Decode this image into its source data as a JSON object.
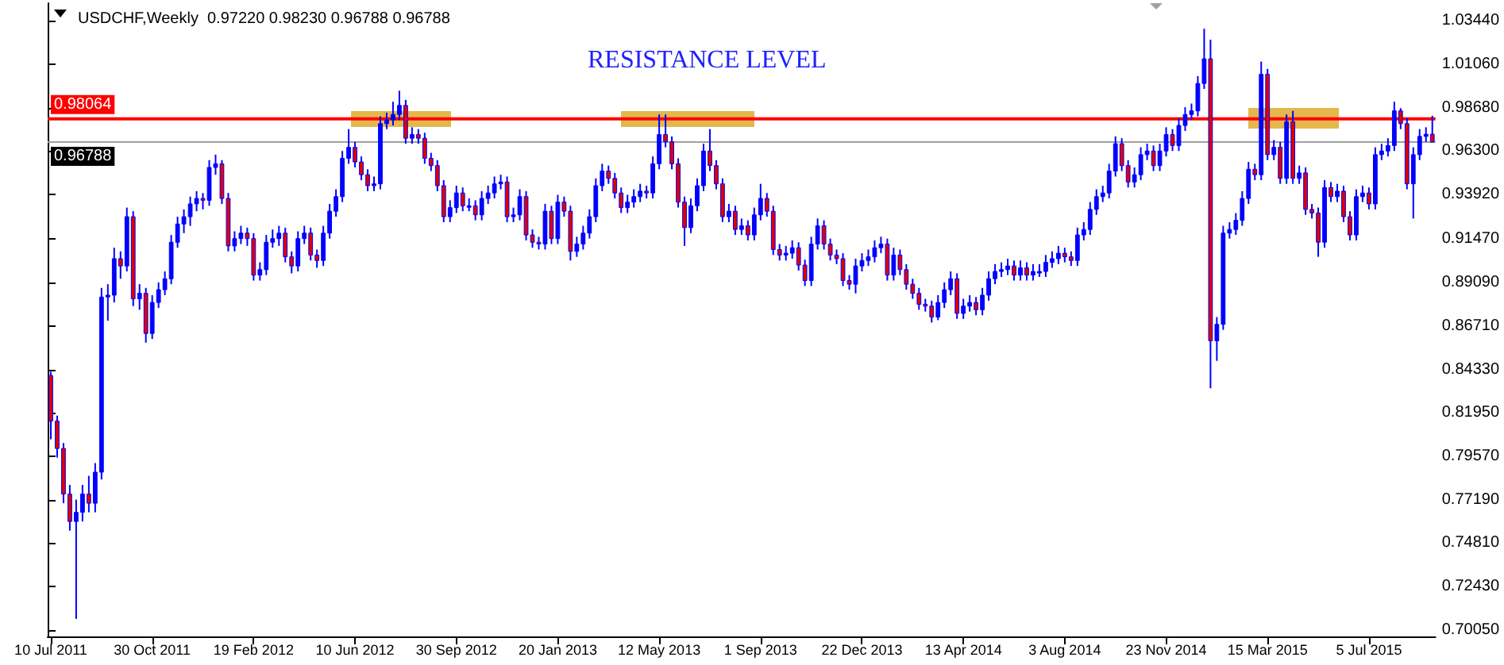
{
  "chart_data": {
    "type": "candlestick",
    "title": "USDCHF,Weekly  0.97220 0.98230 0.96788 0.96788",
    "annotations": [
      "RESISTANCE LEVEL"
    ],
    "color": "#0000ff",
    "categories": [
      "10 Jul 2011",
      null,
      null,
      null,
      null,
      null,
      null,
      null,
      null,
      null,
      null,
      null,
      null,
      null,
      null,
      null,
      "30 Oct 2011",
      null,
      null,
      null,
      null,
      null,
      null,
      null,
      null,
      null,
      null,
      null,
      null,
      null,
      null,
      null,
      "19 Feb 2012",
      null,
      null,
      null,
      null,
      null,
      null,
      null,
      null,
      null,
      null,
      null,
      null,
      null,
      null,
      null,
      "10 Jun 2012",
      null,
      null,
      null,
      null,
      null,
      null,
      null,
      null,
      null,
      null,
      null,
      null,
      null,
      null,
      null,
      "30 Sep 2012",
      null,
      null,
      null,
      null,
      null,
      null,
      null,
      null,
      null,
      null,
      null,
      null,
      null,
      null,
      null,
      "20 Jan 2013",
      null,
      null,
      null,
      null,
      null,
      null,
      null,
      null,
      null,
      null,
      null,
      null,
      null,
      null,
      null,
      "12 May 2013",
      null,
      null,
      null,
      null,
      null,
      null,
      null,
      null,
      null,
      null,
      null,
      null,
      null,
      null,
      null,
      "1 Sep 2013",
      null,
      null,
      null,
      null,
      null,
      null,
      null,
      null,
      null,
      null,
      null,
      null,
      null,
      null,
      null,
      "22 Dec 2013",
      null,
      null,
      null,
      null,
      null,
      null,
      null,
      null,
      null,
      null,
      null,
      null,
      null,
      null,
      null,
      "13 Apr 2014",
      null,
      null,
      null,
      null,
      null,
      null,
      null,
      null,
      null,
      null,
      null,
      null,
      null,
      null,
      null,
      "3 Aug 2014",
      null,
      null,
      null,
      null,
      null,
      null,
      null,
      null,
      null,
      null,
      null,
      null,
      null,
      null,
      null,
      "23 Nov 2014",
      null,
      null,
      null,
      null,
      null,
      null,
      null,
      null,
      null,
      null,
      null,
      null,
      null,
      null,
      null,
      "15 Mar 2015",
      null,
      null,
      null,
      null,
      null,
      null,
      null,
      null,
      null,
      null,
      null,
      null,
      null,
      null,
      null,
      "5 Jul 2015",
      null,
      null,
      null,
      null,
      null,
      null,
      null,
      null,
      null,
      null
    ],
    "ohlc": [
      [
        0.84,
        0.842,
        0.805,
        0.815
      ],
      [
        0.815,
        0.818,
        0.795,
        0.8
      ],
      [
        0.8,
        0.803,
        0.77,
        0.775
      ],
      [
        0.775,
        0.78,
        0.755,
        0.76
      ],
      [
        0.76,
        0.772,
        0.7066,
        0.765
      ],
      [
        0.765,
        0.78,
        0.76,
        0.775
      ],
      [
        0.775,
        0.785,
        0.765,
        0.77
      ],
      [
        0.77,
        0.792,
        0.765,
        0.787
      ],
      [
        0.787,
        0.888,
        0.783,
        0.883
      ],
      [
        0.883,
        0.89,
        0.87,
        0.884
      ],
      [
        0.884,
        0.91,
        0.88,
        0.904
      ],
      [
        0.904,
        0.908,
        0.893,
        0.9
      ],
      [
        0.9,
        0.932,
        0.897,
        0.927
      ],
      [
        0.927,
        0.93,
        0.878,
        0.882
      ],
      [
        0.882,
        0.89,
        0.876,
        0.885
      ],
      [
        0.885,
        0.888,
        0.858,
        0.863
      ],
      [
        0.863,
        0.884,
        0.86,
        0.88
      ],
      [
        0.88,
        0.891,
        0.877,
        0.887
      ],
      [
        0.887,
        0.897,
        0.884,
        0.893
      ],
      [
        0.893,
        0.917,
        0.89,
        0.913
      ],
      [
        0.913,
        0.927,
        0.91,
        0.923
      ],
      [
        0.923,
        0.931,
        0.918,
        0.927
      ],
      [
        0.927,
        0.938,
        0.922,
        0.934
      ],
      [
        0.934,
        0.941,
        0.93,
        0.937
      ],
      [
        0.937,
        0.94,
        0.931,
        0.936
      ],
      [
        0.936,
        0.958,
        0.933,
        0.954
      ],
      [
        0.954,
        0.961,
        0.95,
        0.956
      ],
      [
        0.956,
        0.958,
        0.934,
        0.937
      ],
      [
        0.937,
        0.94,
        0.908,
        0.911
      ],
      [
        0.911,
        0.919,
        0.908,
        0.915
      ],
      [
        0.915,
        0.922,
        0.912,
        0.918
      ],
      [
        0.918,
        0.921,
        0.911,
        0.915
      ],
      [
        0.915,
        0.918,
        0.892,
        0.895
      ],
      [
        0.895,
        0.902,
        0.892,
        0.898
      ],
      [
        0.898,
        0.917,
        0.895,
        0.913
      ],
      [
        0.913,
        0.92,
        0.91,
        0.915
      ],
      [
        0.915,
        0.922,
        0.911,
        0.918
      ],
      [
        0.918,
        0.921,
        0.902,
        0.905
      ],
      [
        0.905,
        0.908,
        0.896,
        0.9
      ],
      [
        0.9,
        0.919,
        0.897,
        0.915
      ],
      [
        0.915,
        0.922,
        0.912,
        0.918
      ],
      [
        0.918,
        0.921,
        0.903,
        0.906
      ],
      [
        0.906,
        0.909,
        0.899,
        0.903
      ],
      [
        0.903,
        0.922,
        0.9,
        0.918
      ],
      [
        0.918,
        0.934,
        0.915,
        0.93
      ],
      [
        0.93,
        0.942,
        0.927,
        0.938
      ],
      [
        0.938,
        0.963,
        0.935,
        0.959
      ],
      [
        0.959,
        0.975,
        0.956,
        0.965
      ],
      [
        0.965,
        0.968,
        0.954,
        0.957
      ],
      [
        0.957,
        0.96,
        0.947,
        0.95
      ],
      [
        0.95,
        0.953,
        0.941,
        0.944
      ],
      [
        0.944,
        0.949,
        0.941,
        0.945
      ],
      [
        0.945,
        0.982,
        0.942,
        0.978
      ],
      [
        0.978,
        0.984,
        0.975,
        0.98
      ],
      [
        0.98,
        0.99,
        0.977,
        0.983
      ],
      [
        0.983,
        0.996,
        0.98,
        0.988
      ],
      [
        0.988,
        0.991,
        0.967,
        0.97
      ],
      [
        0.97,
        0.976,
        0.967,
        0.972
      ],
      [
        0.972,
        0.975,
        0.967,
        0.97
      ],
      [
        0.97,
        0.973,
        0.956,
        0.959
      ],
      [
        0.959,
        0.962,
        0.952,
        0.955
      ],
      [
        0.955,
        0.958,
        0.941,
        0.944
      ],
      [
        0.944,
        0.947,
        0.924,
        0.927
      ],
      [
        0.927,
        0.936,
        0.924,
        0.932
      ],
      [
        0.932,
        0.944,
        0.929,
        0.94
      ],
      [
        0.94,
        0.943,
        0.93,
        0.933
      ],
      [
        0.933,
        0.937,
        0.93,
        0.933
      ],
      [
        0.933,
        0.936,
        0.925,
        0.928
      ],
      [
        0.928,
        0.941,
        0.925,
        0.937
      ],
      [
        0.937,
        0.944,
        0.934,
        0.94
      ],
      [
        0.94,
        0.949,
        0.937,
        0.945
      ],
      [
        0.945,
        0.95,
        0.942,
        0.946
      ],
      [
        0.946,
        0.949,
        0.924,
        0.927
      ],
      [
        0.927,
        0.932,
        0.924,
        0.928
      ],
      [
        0.928,
        0.942,
        0.925,
        0.938
      ],
      [
        0.938,
        0.941,
        0.914,
        0.917
      ],
      [
        0.917,
        0.92,
        0.91,
        0.913
      ],
      [
        0.913,
        0.916,
        0.909,
        0.912
      ],
      [
        0.912,
        0.934,
        0.909,
        0.93
      ],
      [
        0.93,
        0.933,
        0.912,
        0.915
      ],
      [
        0.915,
        0.939,
        0.912,
        0.935
      ],
      [
        0.935,
        0.938,
        0.927,
        0.93
      ],
      [
        0.93,
        0.933,
        0.903,
        0.908
      ],
      [
        0.908,
        0.916,
        0.905,
        0.912
      ],
      [
        0.912,
        0.922,
        0.909,
        0.918
      ],
      [
        0.918,
        0.931,
        0.915,
        0.927
      ],
      [
        0.927,
        0.948,
        0.924,
        0.944
      ],
      [
        0.944,
        0.956,
        0.941,
        0.952
      ],
      [
        0.952,
        0.955,
        0.945,
        0.948
      ],
      [
        0.948,
        0.951,
        0.937,
        0.94
      ],
      [
        0.94,
        0.943,
        0.929,
        0.932
      ],
      [
        0.932,
        0.939,
        0.929,
        0.935
      ],
      [
        0.935,
        0.942,
        0.932,
        0.938
      ],
      [
        0.938,
        0.945,
        0.935,
        0.941
      ],
      [
        0.941,
        0.944,
        0.937,
        0.94
      ],
      [
        0.94,
        0.96,
        0.937,
        0.956
      ],
      [
        0.956,
        0.983,
        0.953,
        0.972
      ],
      [
        0.972,
        0.983,
        0.965,
        0.968
      ],
      [
        0.968,
        0.971,
        0.953,
        0.956
      ],
      [
        0.956,
        0.959,
        0.932,
        0.935
      ],
      [
        0.935,
        0.938,
        0.911,
        0.921
      ],
      [
        0.921,
        0.937,
        0.918,
        0.933
      ],
      [
        0.933,
        0.948,
        0.93,
        0.944
      ],
      [
        0.944,
        0.967,
        0.941,
        0.963
      ],
      [
        0.963,
        0.975,
        0.952,
        0.955
      ],
      [
        0.955,
        0.958,
        0.942,
        0.945
      ],
      [
        0.945,
        0.948,
        0.924,
        0.927
      ],
      [
        0.927,
        0.934,
        0.924,
        0.93
      ],
      [
        0.93,
        0.933,
        0.917,
        0.92
      ],
      [
        0.92,
        0.926,
        0.917,
        0.922
      ],
      [
        0.922,
        0.925,
        0.914,
        0.917
      ],
      [
        0.917,
        0.932,
        0.914,
        0.928
      ],
      [
        0.928,
        0.945,
        0.925,
        0.937
      ],
      [
        0.937,
        0.94,
        0.927,
        0.93
      ],
      [
        0.93,
        0.933,
        0.906,
        0.909
      ],
      [
        0.909,
        0.912,
        0.903,
        0.906
      ],
      [
        0.906,
        0.911,
        0.903,
        0.907
      ],
      [
        0.907,
        0.914,
        0.904,
        0.91
      ],
      [
        0.91,
        0.913,
        0.8975,
        0.9005
      ],
      [
        0.9005,
        0.9035,
        0.889,
        0.892
      ],
      [
        0.892,
        0.916,
        0.889,
        0.912
      ],
      [
        0.912,
        0.926,
        0.909,
        0.922
      ],
      [
        0.922,
        0.925,
        0.909,
        0.912
      ],
      [
        0.912,
        0.915,
        0.903,
        0.906
      ],
      [
        0.906,
        0.909,
        0.901,
        0.904
      ],
      [
        0.904,
        0.907,
        0.889,
        0.892
      ],
      [
        0.892,
        0.895,
        0.887,
        0.89
      ],
      [
        0.89,
        0.904,
        0.885,
        0.9
      ],
      [
        0.9,
        0.907,
        0.897,
        0.903
      ],
      [
        0.903,
        0.909,
        0.9,
        0.905
      ],
      [
        0.905,
        0.914,
        0.902,
        0.91
      ],
      [
        0.91,
        0.916,
        0.907,
        0.912
      ],
      [
        0.912,
        0.915,
        0.892,
        0.895
      ],
      [
        0.895,
        0.91,
        0.892,
        0.906
      ],
      [
        0.906,
        0.909,
        0.895,
        0.898
      ],
      [
        0.898,
        0.901,
        0.887,
        0.89
      ],
      [
        0.89,
        0.893,
        0.882,
        0.885
      ],
      [
        0.885,
        0.888,
        0.876,
        0.879
      ],
      [
        0.879,
        0.882,
        0.875,
        0.878
      ],
      [
        0.878,
        0.881,
        0.869,
        0.872
      ],
      [
        0.872,
        0.884,
        0.8703,
        0.88
      ],
      [
        0.88,
        0.891,
        0.877,
        0.887
      ],
      [
        0.887,
        0.897,
        0.884,
        0.893
      ],
      [
        0.893,
        0.896,
        0.871,
        0.874
      ],
      [
        0.874,
        0.882,
        0.871,
        0.878
      ],
      [
        0.878,
        0.884,
        0.875,
        0.88
      ],
      [
        0.88,
        0.883,
        0.873,
        0.876
      ],
      [
        0.876,
        0.888,
        0.873,
        0.884
      ],
      [
        0.884,
        0.897,
        0.881,
        0.893
      ],
      [
        0.893,
        0.901,
        0.89,
        0.897
      ],
      [
        0.897,
        0.902,
        0.894,
        0.898
      ],
      [
        0.898,
        0.904,
        0.895,
        0.9
      ],
      [
        0.9,
        0.903,
        0.892,
        0.895
      ],
      [
        0.895,
        0.903,
        0.892,
        0.899
      ],
      [
        0.899,
        0.902,
        0.892,
        0.895
      ],
      [
        0.895,
        0.901,
        0.892,
        0.897
      ],
      [
        0.897,
        0.901,
        0.894,
        0.897
      ],
      [
        0.897,
        0.906,
        0.894,
        0.902
      ],
      [
        0.902,
        0.908,
        0.899,
        0.904
      ],
      [
        0.904,
        0.911,
        0.901,
        0.907
      ],
      [
        0.907,
        0.91,
        0.902,
        0.905
      ],
      [
        0.905,
        0.908,
        0.9,
        0.903
      ],
      [
        0.903,
        0.921,
        0.9,
        0.917
      ],
      [
        0.917,
        0.924,
        0.914,
        0.92
      ],
      [
        0.92,
        0.935,
        0.917,
        0.931
      ],
      [
        0.931,
        0.942,
        0.928,
        0.938
      ],
      [
        0.938,
        0.944,
        0.935,
        0.94
      ],
      [
        0.94,
        0.956,
        0.937,
        0.952
      ],
      [
        0.952,
        0.971,
        0.949,
        0.967
      ],
      [
        0.967,
        0.97,
        0.952,
        0.955
      ],
      [
        0.955,
        0.958,
        0.943,
        0.946
      ],
      [
        0.946,
        0.954,
        0.943,
        0.95
      ],
      [
        0.95,
        0.965,
        0.947,
        0.961
      ],
      [
        0.961,
        0.967,
        0.958,
        0.963
      ],
      [
        0.963,
        0.966,
        0.952,
        0.955
      ],
      [
        0.955,
        0.967,
        0.952,
        0.963
      ],
      [
        0.963,
        0.976,
        0.96,
        0.972
      ],
      [
        0.972,
        0.975,
        0.963,
        0.966
      ],
      [
        0.966,
        0.981,
        0.963,
        0.977
      ],
      [
        0.977,
        0.987,
        0.974,
        0.983
      ],
      [
        0.983,
        0.989,
        0.98,
        0.985
      ],
      [
        0.985,
        1.004,
        0.982,
        1.0
      ],
      [
        1.0,
        1.03,
        0.997,
        1.0135
      ],
      [
        1.0135,
        1.024,
        0.833,
        0.859
      ],
      [
        0.859,
        0.872,
        0.848,
        0.868
      ],
      [
        0.868,
        0.922,
        0.865,
        0.918
      ],
      [
        0.918,
        0.924,
        0.915,
        0.92
      ],
      [
        0.92,
        0.929,
        0.917,
        0.925
      ],
      [
        0.925,
        0.941,
        0.922,
        0.937
      ],
      [
        0.937,
        0.957,
        0.934,
        0.953
      ],
      [
        0.953,
        0.956,
        0.947,
        0.95
      ],
      [
        0.95,
        1.012,
        0.947,
        1.005
      ],
      [
        1.005,
        1.008,
        0.958,
        0.961
      ],
      [
        0.961,
        0.969,
        0.958,
        0.965
      ],
      [
        0.965,
        0.968,
        0.945,
        0.948
      ],
      [
        0.948,
        0.983,
        0.945,
        0.979
      ],
      [
        0.979,
        0.985,
        0.945,
        0.948
      ],
      [
        0.948,
        0.955,
        0.945,
        0.951
      ],
      [
        0.951,
        0.954,
        0.928,
        0.931
      ],
      [
        0.931,
        0.934,
        0.926,
        0.929
      ],
      [
        0.929,
        0.932,
        0.905,
        0.913
      ],
      [
        0.913,
        0.947,
        0.91,
        0.943
      ],
      [
        0.943,
        0.946,
        0.935,
        0.938
      ],
      [
        0.938,
        0.945,
        0.935,
        0.941
      ],
      [
        0.941,
        0.944,
        0.924,
        0.927
      ],
      [
        0.927,
        0.93,
        0.914,
        0.917
      ],
      [
        0.917,
        0.942,
        0.914,
        0.938
      ],
      [
        0.938,
        0.944,
        0.935,
        0.94
      ],
      [
        0.94,
        0.943,
        0.931,
        0.934
      ],
      [
        0.934,
        0.965,
        0.931,
        0.961
      ],
      [
        0.961,
        0.967,
        0.958,
        0.963
      ],
      [
        0.963,
        0.97,
        0.96,
        0.966
      ],
      [
        0.966,
        0.99,
        0.963,
        0.985
      ],
      [
        0.985,
        0.9865,
        0.975,
        0.978
      ],
      [
        0.978,
        0.981,
        0.942,
        0.945
      ],
      [
        0.945,
        0.965,
        0.926,
        0.961
      ],
      [
        0.961,
        0.975,
        0.958,
        0.971
      ],
      [
        0.971,
        0.976,
        0.968,
        0.9722
      ],
      [
        0.9722,
        0.9823,
        0.96788,
        0.96788
      ]
    ],
    "ylim": [
      0.697,
      1.044
    ],
    "yticks": [
      {
        "value": 0.7005,
        "label": "0.70050"
      },
      {
        "value": 0.7243,
        "label": "0.72430"
      },
      {
        "value": 0.7481,
        "label": "0.74810"
      },
      {
        "value": 0.7719,
        "label": "0.77190"
      },
      {
        "value": 0.7957,
        "label": "0.79570"
      },
      {
        "value": 0.8195,
        "label": "0.81950"
      },
      {
        "value": 0.8433,
        "label": "0.84330"
      },
      {
        "value": 0.8671,
        "label": "0.86710"
      },
      {
        "value": 0.8909,
        "label": "0.89090"
      },
      {
        "value": 0.9147,
        "label": "0.91470"
      },
      {
        "value": 0.9392,
        "label": "0.93920"
      },
      {
        "value": 0.963,
        "label": "0.96300"
      },
      {
        "value": 0.9868,
        "label": "0.98680"
      },
      {
        "value": 1.0106,
        "label": "1.01060"
      },
      {
        "value": 1.0344,
        "label": "1.03440"
      }
    ],
    "ref_lines": [
      {
        "axis": "y",
        "value": 0.98064,
        "label": "0.98064",
        "color": "#ff0000"
      },
      {
        "axis": "y",
        "value": 0.96788,
        "label": "0.96788",
        "color": "#a0a0a0"
      }
    ]
  }
}
